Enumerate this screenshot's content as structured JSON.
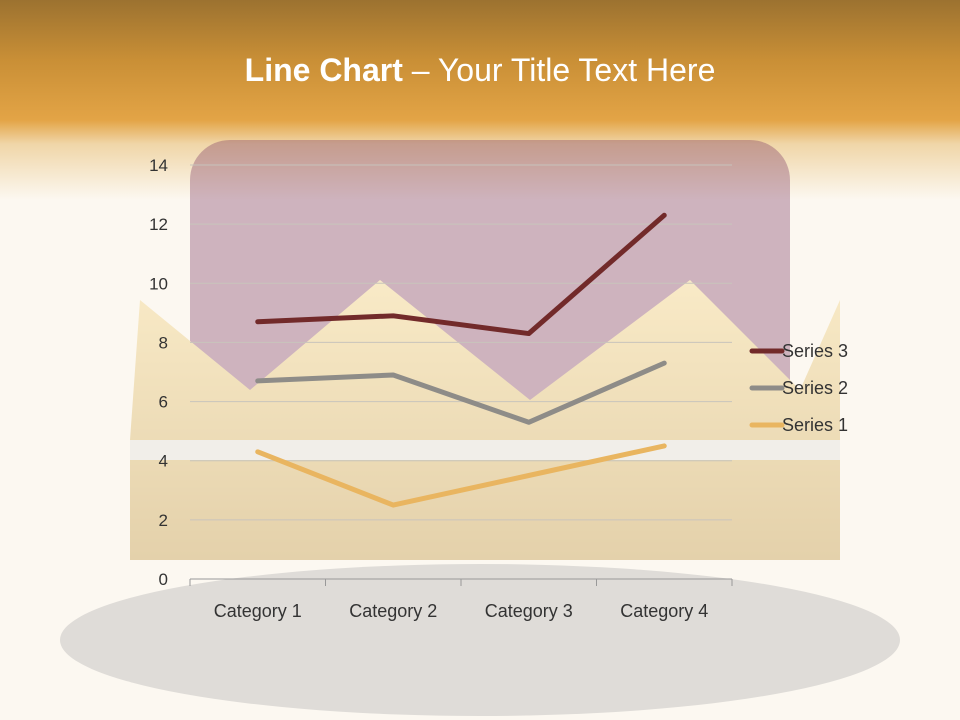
{
  "slide": {
    "title_bold": "Line Chart",
    "title_rest": " – Your Title Text Here"
  },
  "chart_data": {
    "type": "line",
    "stacked": true,
    "categories": [
      "Category 1",
      "Category 2",
      "Category 3",
      "Category 4"
    ],
    "series": [
      {
        "name": "Series 1",
        "values": [
          4.3,
          2.5,
          3.5,
          4.5
        ],
        "color": "#e9b560"
      },
      {
        "name": "Series 2",
        "values": [
          2.4,
          4.4,
          1.8,
          2.8
        ],
        "color": "#8e8c88"
      },
      {
        "name": "Series 3",
        "values": [
          2,
          2,
          3,
          5
        ],
        "color": "#722a2a"
      }
    ],
    "ylim": [
      0,
      14
    ],
    "yticks": [
      0,
      2,
      4,
      6,
      8,
      10,
      12,
      14
    ],
    "grid": true,
    "legend": "right"
  }
}
